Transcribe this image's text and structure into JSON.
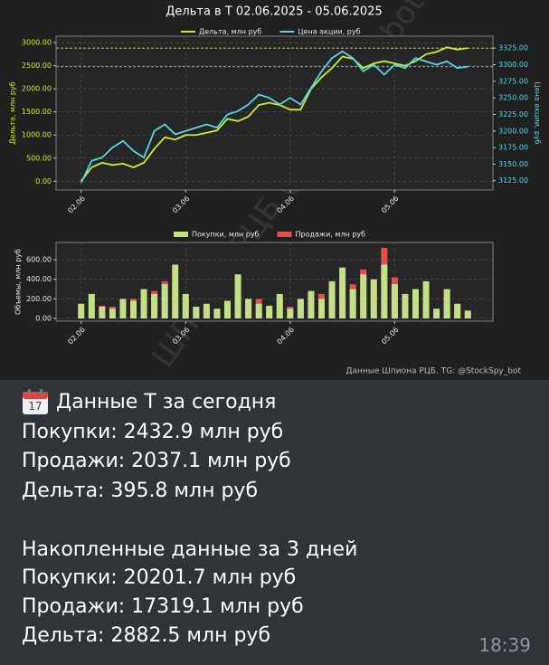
{
  "chart_data": [
    {
      "type": "line",
      "title": "Дельта в Т 02.06.2025 - 05.06.2025",
      "ylabel": "Дельта, млн руб",
      "y2label": "Цена акции, руб",
      "x": [
        0,
        0.1,
        0.2,
        0.3,
        0.4,
        0.5,
        0.6,
        0.7,
        0.8,
        0.9,
        1.0,
        1.1,
        1.2,
        1.3,
        1.4,
        1.5,
        1.6,
        1.7,
        1.8,
        1.9,
        2.0,
        2.1,
        2.2,
        2.3,
        2.4,
        2.5,
        2.6,
        2.7,
        2.8,
        2.9,
        3.0,
        3.1,
        3.2,
        3.3,
        3.4,
        3.5,
        3.6,
        3.7
      ],
      "series": [
        {
          "name": "Дельта, млн руб",
          "color": "#c6f02e",
          "values": [
            0,
            300,
            400,
            350,
            380,
            300,
            400,
            700,
            950,
            900,
            1000,
            1000,
            1050,
            1100,
            1350,
            1300,
            1400,
            1650,
            1700,
            1650,
            1550,
            1550,
            2000,
            2250,
            2450,
            2700,
            2650,
            2450,
            2550,
            2600,
            2550,
            2500,
            2600,
            2750,
            2800,
            2900,
            2850,
            2882
          ]
        },
        {
          "name": "Цена акции, руб",
          "color": "#55d6e6",
          "axis": "y2",
          "values": [
            3122,
            3155,
            3160,
            3175,
            3185,
            3170,
            3160,
            3200,
            3210,
            3195,
            3200,
            3205,
            3210,
            3205,
            3225,
            3230,
            3240,
            3255,
            3250,
            3240,
            3250,
            3240,
            3265,
            3290,
            3310,
            3320,
            3310,
            3290,
            3300,
            3285,
            3300,
            3295,
            3310,
            3305,
            3300,
            3305,
            3295,
            3297
          ]
        }
      ],
      "xlim": [
        -0.24,
        3.94
      ],
      "xticks": [
        {
          "value": 0,
          "label": "02.06"
        },
        {
          "value": 1,
          "label": "03.06"
        },
        {
          "value": 2,
          "label": "04.06"
        },
        {
          "value": 3,
          "label": "05.06"
        }
      ],
      "ylim": [
        -190,
        3140
      ],
      "yticks": [
        {
          "value": 0,
          "label": "0.00"
        },
        {
          "value": 500,
          "label": "500.00"
        },
        {
          "value": 1000,
          "label": "1000.00"
        },
        {
          "value": 1500,
          "label": "1500.00"
        },
        {
          "value": 2000,
          "label": "2000.00"
        },
        {
          "value": 2500,
          "label": "2500.00"
        },
        {
          "value": 3000,
          "label": "3000.00"
        }
      ],
      "y2lim": [
        3111,
        3343
      ],
      "y2ticks": [
        {
          "value": 3125,
          "label": "3125.00"
        },
        {
          "value": 3150,
          "label": "3150.00"
        },
        {
          "value": 3175,
          "label": "3175.00"
        },
        {
          "value": 3200,
          "label": "3200.00"
        },
        {
          "value": 3225,
          "label": "3225.00"
        },
        {
          "value": 3250,
          "label": "3250.00"
        },
        {
          "value": 3275,
          "label": "3275.00"
        },
        {
          "value": 3300,
          "label": "3300.00"
        },
        {
          "value": 3325,
          "label": "3325.00"
        }
      ],
      "grid": true
    },
    {
      "type": "bar",
      "ylabel": "Объемы, млн руб",
      "annotation": "Данные Шпиона РЦБ. TG: @StockSpy_bot",
      "x": [
        0,
        0.1,
        0.2,
        0.3,
        0.4,
        0.5,
        0.6,
        0.7,
        0.8,
        0.9,
        1.0,
        1.1,
        1.2,
        1.3,
        1.4,
        1.5,
        1.6,
        1.7,
        1.8,
        1.9,
        2.0,
        2.1,
        2.2,
        2.3,
        2.4,
        2.5,
        2.6,
        2.7,
        2.8,
        2.9,
        3.0,
        3.1,
        3.2,
        3.3,
        3.4,
        3.5,
        3.6,
        3.7
      ],
      "series": [
        {
          "name": "Продажи, млн руб",
          "color": "#e35050",
          "values": [
            80,
            100,
            130,
            120,
            150,
            200,
            220,
            280,
            380,
            300,
            200,
            100,
            120,
            80,
            150,
            250,
            180,
            200,
            100,
            200,
            120,
            180,
            200,
            250,
            300,
            400,
            350,
            500,
            380,
            720,
            420,
            200,
            150,
            200,
            80,
            250,
            120,
            60
          ]
        },
        {
          "name": "Покупки, млн руб",
          "color": "#c3e088",
          "values": [
            150,
            250,
            120,
            100,
            200,
            180,
            300,
            250,
            350,
            550,
            250,
            120,
            150,
            100,
            180,
            450,
            200,
            150,
            130,
            250,
            100,
            200,
            280,
            200,
            380,
            520,
            300,
            450,
            400,
            550,
            350,
            250,
            300,
            380,
            100,
            300,
            150,
            80
          ]
        }
      ],
      "xlim": [
        -0.24,
        3.94
      ],
      "xticks": [
        {
          "value": 0,
          "label": "02.06"
        },
        {
          "value": 1,
          "label": "03.06"
        },
        {
          "value": 2,
          "label": "04.06"
        },
        {
          "value": 3,
          "label": "05.06"
        }
      ],
      "ylim": [
        -28,
        776
      ],
      "yticks": [
        {
          "value": 0,
          "label": "0.00"
        },
        {
          "value": 200,
          "label": "200.00"
        },
        {
          "value": 400,
          "label": "400.00"
        },
        {
          "value": 600,
          "label": "600.00"
        }
      ],
      "grid": true
    }
  ],
  "watermark": "ШПИОН РЦБ @StockSpy_bot",
  "message": {
    "lines": [
      "Данные Т за сегодня",
      "Покупки: 2432.9 млн руб",
      "Продажи: 2037.1 млн руб",
      "Дельта: 395.8 млн руб",
      "Накопленные данные за 3 дней",
      "Покупки: 20201.7 млн руб",
      "Продажи: 17319.1 млн руб",
      "Дельта: 2882.5 млн руб"
    ],
    "time": "18:39"
  }
}
